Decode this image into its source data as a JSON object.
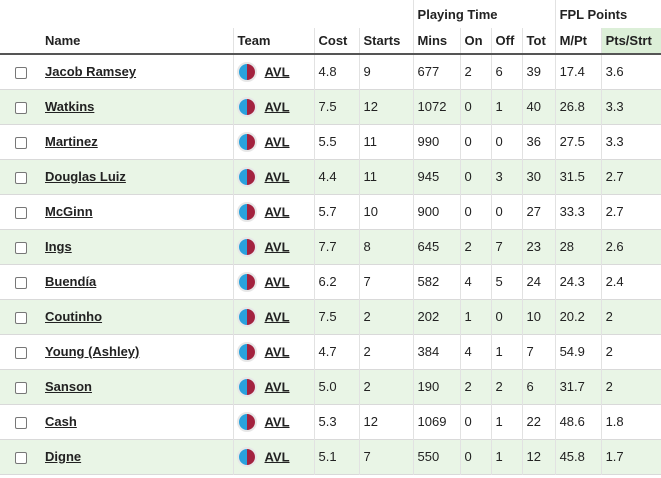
{
  "groups": {
    "playing_time": "Playing Time",
    "fpl_points": "FPL Points"
  },
  "columns": {
    "name": "Name",
    "team": "Team",
    "cost": "Cost",
    "starts": "Starts",
    "mins": "Mins",
    "on": "On",
    "off": "Off",
    "tot": "Tot",
    "mpt": "M/Pt",
    "pts_strt": "Pts/Strt"
  },
  "colors": {
    "sorted_header": "#dcefd8",
    "row_alt": "#e9f5e6",
    "crest_left": "#2aa2dd",
    "crest_right": "#a3223f"
  },
  "rows": [
    {
      "name": "Jacob Ramsey",
      "team": "AVL",
      "cost": "4.8",
      "starts": "9",
      "mins": "677",
      "on": "2",
      "off": "6",
      "tot": "39",
      "mpt": "17.4",
      "pts_strt": "3.6"
    },
    {
      "name": "Watkins",
      "team": "AVL",
      "cost": "7.5",
      "starts": "12",
      "mins": "1072",
      "on": "0",
      "off": "1",
      "tot": "40",
      "mpt": "26.8",
      "pts_strt": "3.3"
    },
    {
      "name": "Martinez",
      "team": "AVL",
      "cost": "5.5",
      "starts": "11",
      "mins": "990",
      "on": "0",
      "off": "0",
      "tot": "36",
      "mpt": "27.5",
      "pts_strt": "3.3"
    },
    {
      "name": "Douglas Luiz",
      "team": "AVL",
      "cost": "4.4",
      "starts": "11",
      "mins": "945",
      "on": "0",
      "off": "3",
      "tot": "30",
      "mpt": "31.5",
      "pts_strt": "2.7"
    },
    {
      "name": "McGinn",
      "team": "AVL",
      "cost": "5.7",
      "starts": "10",
      "mins": "900",
      "on": "0",
      "off": "0",
      "tot": "27",
      "mpt": "33.3",
      "pts_strt": "2.7"
    },
    {
      "name": "Ings",
      "team": "AVL",
      "cost": "7.7",
      "starts": "8",
      "mins": "645",
      "on": "2",
      "off": "7",
      "tot": "23",
      "mpt": "28",
      "pts_strt": "2.6"
    },
    {
      "name": "Buendía",
      "team": "AVL",
      "cost": "6.2",
      "starts": "7",
      "mins": "582",
      "on": "4",
      "off": "5",
      "tot": "24",
      "mpt": "24.3",
      "pts_strt": "2.4"
    },
    {
      "name": "Coutinho",
      "team": "AVL",
      "cost": "7.5",
      "starts": "2",
      "mins": "202",
      "on": "1",
      "off": "0",
      "tot": "10",
      "mpt": "20.2",
      "pts_strt": "2"
    },
    {
      "name": "Young (Ashley)",
      "team": "AVL",
      "cost": "4.7",
      "starts": "2",
      "mins": "384",
      "on": "4",
      "off": "1",
      "tot": "7",
      "mpt": "54.9",
      "pts_strt": "2"
    },
    {
      "name": "Sanson",
      "team": "AVL",
      "cost": "5.0",
      "starts": "2",
      "mins": "190",
      "on": "2",
      "off": "2",
      "tot": "6",
      "mpt": "31.7",
      "pts_strt": "2"
    },
    {
      "name": "Cash",
      "team": "AVL",
      "cost": "5.3",
      "starts": "12",
      "mins": "1069",
      "on": "0",
      "off": "1",
      "tot": "22",
      "mpt": "48.6",
      "pts_strt": "1.8"
    },
    {
      "name": "Digne",
      "team": "AVL",
      "cost": "5.1",
      "starts": "7",
      "mins": "550",
      "on": "0",
      "off": "1",
      "tot": "12",
      "mpt": "45.8",
      "pts_strt": "1.7"
    }
  ]
}
